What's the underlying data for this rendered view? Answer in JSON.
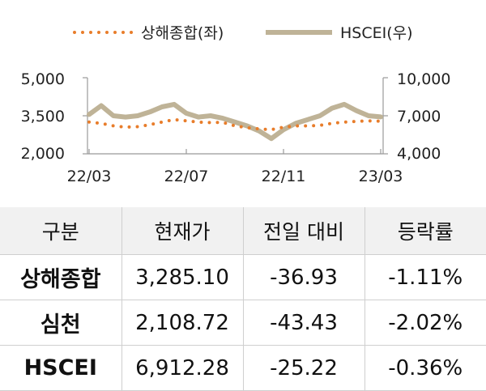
{
  "chart_data": {
    "type": "line",
    "legend_position": "top",
    "legend": {
      "left_series": "상해종합(좌)",
      "right_series": "HSCEI(우)"
    },
    "x_ticks": [
      "22/03",
      "22/07",
      "22/11",
      "23/03"
    ],
    "y_left_ticks": [
      "5,000",
      "3,500",
      "2,000"
    ],
    "y_right_ticks": [
      "10,000",
      "7,000",
      "4,000"
    ],
    "y_left_range": [
      2000,
      5000
    ],
    "y_right_range": [
      4000,
      10000
    ],
    "grid": false,
    "colors": {
      "left_series": "#E87D2B",
      "right_series": "#BFB397",
      "axis": "#999999"
    },
    "series": [
      {
        "name": "상해종합(좌)",
        "axis": "left",
        "style": "dotted",
        "x": [
          "22/03",
          "22/03",
          "22/04",
          "22/04",
          "22/05",
          "22/05",
          "22/06",
          "22/06",
          "22/07",
          "22/07",
          "22/08",
          "22/08",
          "22/09",
          "22/09",
          "22/10",
          "22/10",
          "22/11",
          "22/11",
          "22/12",
          "22/12",
          "23/01",
          "23/01",
          "23/02",
          "23/02",
          "23/03"
        ],
        "values": [
          3250,
          3200,
          3100,
          3050,
          3070,
          3150,
          3250,
          3350,
          3300,
          3250,
          3230,
          3240,
          3100,
          3030,
          2980,
          2950,
          3050,
          3100,
          3100,
          3120,
          3200,
          3250,
          3280,
          3300,
          3285
        ]
      },
      {
        "name": "HSCEI(우)",
        "axis": "right",
        "style": "solid",
        "x": [
          "22/03",
          "22/03",
          "22/04",
          "22/04",
          "22/05",
          "22/05",
          "22/06",
          "22/06",
          "22/07",
          "22/07",
          "22/08",
          "22/08",
          "22/09",
          "22/09",
          "22/10",
          "22/10",
          "22/11",
          "22/11",
          "22/12",
          "22/12",
          "23/01",
          "23/01",
          "23/02",
          "23/02",
          "23/03"
        ],
        "values": [
          7100,
          7800,
          7000,
          6900,
          7000,
          7300,
          7700,
          7900,
          7200,
          6900,
          7000,
          6800,
          6500,
          6200,
          5800,
          5200,
          5900,
          6400,
          6700,
          7000,
          7600,
          7900,
          7400,
          7000,
          6912
        ]
      }
    ]
  },
  "table": {
    "headers": [
      "구분",
      "현재가",
      "전일 대비",
      "등락률"
    ],
    "rows": [
      {
        "name": "상해종합",
        "price": "3,285.10",
        "change": "-36.93",
        "rate": "-1.11%"
      },
      {
        "name": "심천",
        "price": "2,108.72",
        "change": "-43.43",
        "rate": "-2.02%"
      },
      {
        "name": "HSCEI",
        "price": "6,912.28",
        "change": "-25.22",
        "rate": "-0.36%"
      }
    ]
  }
}
